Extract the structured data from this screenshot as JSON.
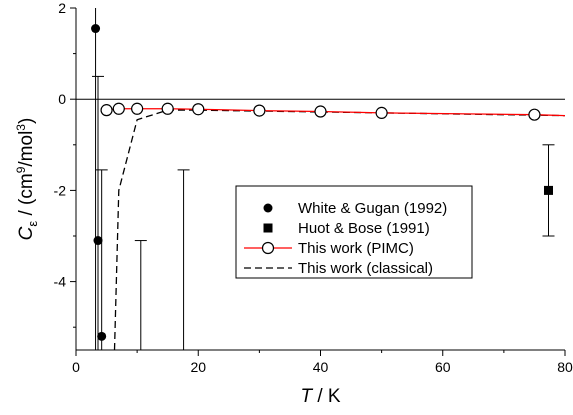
{
  "chart_data": {
    "type": "line",
    "xlabel": {
      "italic": "T",
      "rest": " / K"
    },
    "ylabel": {
      "italic": "C",
      "subscript": "ε",
      "rest": " / (cm",
      "sup1": "9",
      "mid": "/mol",
      "sup2": "3",
      "end": ")"
    },
    "xlim": [
      0,
      80
    ],
    "ylim": [
      -5.5,
      2
    ],
    "xticks": [
      "0",
      "20",
      "40",
      "60",
      "80"
    ],
    "yticks": [
      "-4",
      "-2",
      "0",
      "2"
    ],
    "x_tick_values": [
      0,
      20,
      40,
      60,
      80
    ],
    "y_tick_values": [
      -4,
      -2,
      0,
      2
    ],
    "reference_line": {
      "y": 0
    },
    "legend": {
      "placement": "lower-center",
      "entries": [
        {
          "label": "White & Gugan (1992)",
          "marker": "filled-circle"
        },
        {
          "label": "Huot & Bose (1991)",
          "marker": "filled-square"
        },
        {
          "label": "This work (PIMC)",
          "marker": "open-circle-red-line"
        },
        {
          "label": "This work (classical)",
          "marker": "dashed-line"
        }
      ]
    },
    "series": [
      {
        "name": "White & Gugan (1992)",
        "type": "scatter",
        "marker": "filled-circle",
        "color": "#000000",
        "points": [
          {
            "x": 3.2,
            "y": 1.55,
            "yerr_low": -5.5,
            "yerr_high": 2.0
          },
          {
            "x": 3.6,
            "y": -3.1,
            "yerr_low": -5.5,
            "yerr_high": 0.5
          },
          {
            "x": 4.2,
            "y": -5.2,
            "yerr_low": -5.5,
            "yerr_high": -1.55
          }
        ]
      },
      {
        "name": "Huot & Bose (1991)",
        "type": "scatter",
        "marker": "filled-square",
        "color": "#000000",
        "points": [
          {
            "x": 77.3,
            "y": -2.0,
            "yerr_low": -3.0,
            "yerr_high": -1.0
          }
        ]
      },
      {
        "name": "This work (PIMC)",
        "type": "line",
        "marker": "open-circle",
        "color": "#ff0000",
        "x": [
          5,
          7,
          10,
          15,
          20,
          30,
          40,
          50,
          75,
          80
        ],
        "y": [
          -0.24,
          -0.21,
          -0.21,
          -0.21,
          -0.22,
          -0.25,
          -0.27,
          -0.3,
          -0.34,
          -0.36
        ],
        "marker_x": [
          5,
          7,
          10,
          15,
          20,
          30,
          40,
          50,
          75
        ],
        "marker_y": [
          -0.24,
          -0.21,
          -0.21,
          -0.21,
          -0.22,
          -0.25,
          -0.27,
          -0.3,
          -0.34
        ]
      },
      {
        "name": "This work (classical)",
        "type": "line",
        "style": "dashed",
        "color": "#000000",
        "x": [
          6.3,
          7,
          10,
          15,
          20,
          30,
          40,
          50,
          75,
          80
        ],
        "y": [
          -5.5,
          -2.0,
          -0.45,
          -0.24,
          -0.24,
          -0.26,
          -0.28,
          -0.3,
          -0.35,
          -0.36
        ]
      },
      {
        "name": "",
        "type": "errorbars-only",
        "color": "#000000",
        "points": [
          {
            "x": 10.6,
            "yerr_low": -5.5,
            "yerr_high": -3.1
          },
          {
            "x": 17.6,
            "yerr_low": -5.5,
            "yerr_high": -1.55
          }
        ]
      }
    ]
  }
}
